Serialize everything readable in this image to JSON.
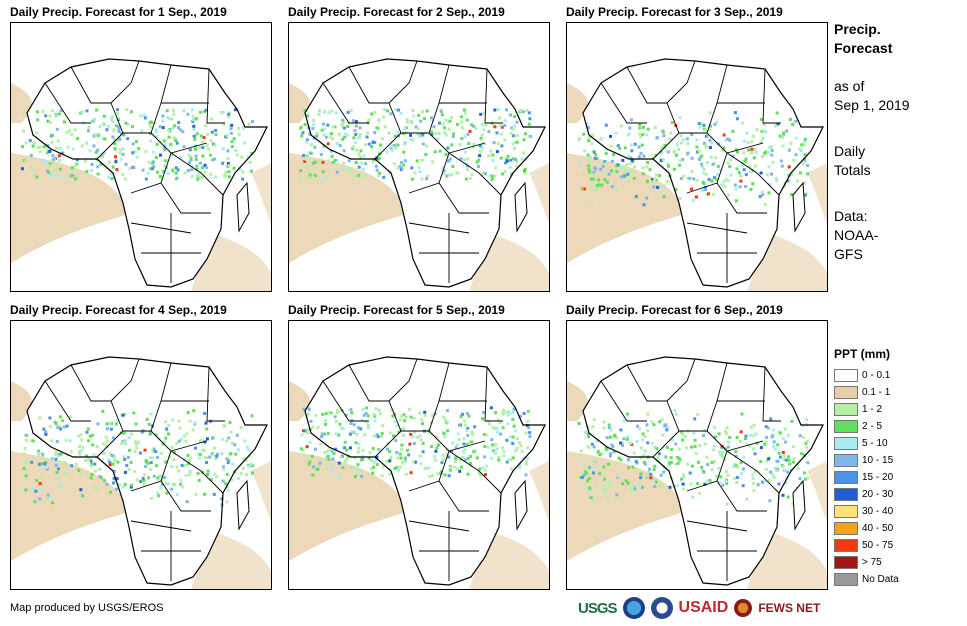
{
  "panels": [
    {
      "title": "Daily Precip. Forecast for 1 Sep., 2019"
    },
    {
      "title": "Daily Precip. Forecast for 2 Sep., 2019"
    },
    {
      "title": "Daily Precip. Forecast for 3 Sep., 2019"
    },
    {
      "title": "Daily Precip. Forecast for 4 Sep., 2019"
    },
    {
      "title": "Daily Precip. Forecast for 5 Sep., 2019"
    },
    {
      "title": "Daily Precip. Forecast for 6 Sep., 2019"
    }
  ],
  "side": {
    "heading_line1": "Precip.",
    "heading_line2": "Forecast",
    "asof_line1": "as of",
    "asof_line2": "Sep 1, 2019",
    "totals_line1": "Daily",
    "totals_line2": "Totals",
    "data_line1": "Data:",
    "data_line2": "NOAA-",
    "data_line3": "GFS"
  },
  "legend": {
    "title": "PPT (mm)",
    "items": [
      {
        "label": "0 - 0.1",
        "color": "#ffffff"
      },
      {
        "label": "0.1 - 1",
        "color": "#e6cfa8"
      },
      {
        "label": "1 - 2",
        "color": "#b4f0a4"
      },
      {
        "label": "2 - 5",
        "color": "#5fe05a"
      },
      {
        "label": "5 - 10",
        "color": "#a8ecf2"
      },
      {
        "label": "10 - 15",
        "color": "#7fb6ee"
      },
      {
        "label": "15 - 20",
        "color": "#4a94e6"
      },
      {
        "label": "20 - 30",
        "color": "#1e5fd6"
      },
      {
        "label": "30 - 40",
        "color": "#fde27a"
      },
      {
        "label": "40 - 50",
        "color": "#f7a21b"
      },
      {
        "label": "50 - 75",
        "color": "#ee3b12"
      },
      {
        "label": "> 75",
        "color": "#a31616"
      },
      {
        "label": "No Data",
        "color": "#999999"
      }
    ]
  },
  "footer": {
    "credit": "Map produced by USGS/EROS"
  },
  "logos": {
    "usgs": "USGS",
    "usaid_a": "US",
    "usaid_b": "AID",
    "fews": "FEWS NET"
  }
}
